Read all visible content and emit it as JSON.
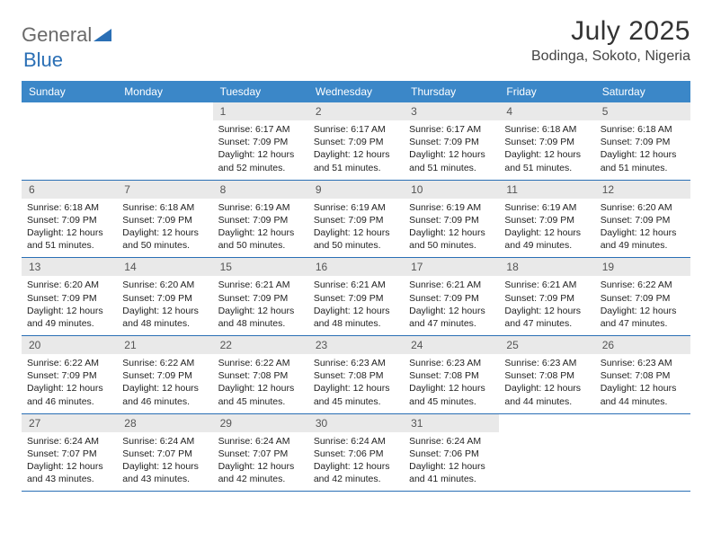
{
  "logo": {
    "text1": "General",
    "text2": "Blue"
  },
  "title": "July 2025",
  "location": "Bodinga, Sokoto, Nigeria",
  "colors": {
    "headerBar": "#3b87c8",
    "weekDivider": "#2a6fb5",
    "dayNumBg": "#e9e9e9",
    "logoAccent": "#2a6fb5",
    "textDark": "#333333"
  },
  "daysOfWeek": [
    "Sunday",
    "Monday",
    "Tuesday",
    "Wednesday",
    "Thursday",
    "Friday",
    "Saturday"
  ],
  "weeks": [
    [
      {
        "n": "",
        "sunrise": "",
        "sunset": "",
        "daylight": "",
        "empty": true
      },
      {
        "n": "",
        "sunrise": "",
        "sunset": "",
        "daylight": "",
        "empty": true
      },
      {
        "n": "1",
        "sunrise": "Sunrise: 6:17 AM",
        "sunset": "Sunset: 7:09 PM",
        "daylight": "Daylight: 12 hours and 52 minutes."
      },
      {
        "n": "2",
        "sunrise": "Sunrise: 6:17 AM",
        "sunset": "Sunset: 7:09 PM",
        "daylight": "Daylight: 12 hours and 51 minutes."
      },
      {
        "n": "3",
        "sunrise": "Sunrise: 6:17 AM",
        "sunset": "Sunset: 7:09 PM",
        "daylight": "Daylight: 12 hours and 51 minutes."
      },
      {
        "n": "4",
        "sunrise": "Sunrise: 6:18 AM",
        "sunset": "Sunset: 7:09 PM",
        "daylight": "Daylight: 12 hours and 51 minutes."
      },
      {
        "n": "5",
        "sunrise": "Sunrise: 6:18 AM",
        "sunset": "Sunset: 7:09 PM",
        "daylight": "Daylight: 12 hours and 51 minutes."
      }
    ],
    [
      {
        "n": "6",
        "sunrise": "Sunrise: 6:18 AM",
        "sunset": "Sunset: 7:09 PM",
        "daylight": "Daylight: 12 hours and 51 minutes."
      },
      {
        "n": "7",
        "sunrise": "Sunrise: 6:18 AM",
        "sunset": "Sunset: 7:09 PM",
        "daylight": "Daylight: 12 hours and 50 minutes."
      },
      {
        "n": "8",
        "sunrise": "Sunrise: 6:19 AM",
        "sunset": "Sunset: 7:09 PM",
        "daylight": "Daylight: 12 hours and 50 minutes."
      },
      {
        "n": "9",
        "sunrise": "Sunrise: 6:19 AM",
        "sunset": "Sunset: 7:09 PM",
        "daylight": "Daylight: 12 hours and 50 minutes."
      },
      {
        "n": "10",
        "sunrise": "Sunrise: 6:19 AM",
        "sunset": "Sunset: 7:09 PM",
        "daylight": "Daylight: 12 hours and 50 minutes."
      },
      {
        "n": "11",
        "sunrise": "Sunrise: 6:19 AM",
        "sunset": "Sunset: 7:09 PM",
        "daylight": "Daylight: 12 hours and 49 minutes."
      },
      {
        "n": "12",
        "sunrise": "Sunrise: 6:20 AM",
        "sunset": "Sunset: 7:09 PM",
        "daylight": "Daylight: 12 hours and 49 minutes."
      }
    ],
    [
      {
        "n": "13",
        "sunrise": "Sunrise: 6:20 AM",
        "sunset": "Sunset: 7:09 PM",
        "daylight": "Daylight: 12 hours and 49 minutes."
      },
      {
        "n": "14",
        "sunrise": "Sunrise: 6:20 AM",
        "sunset": "Sunset: 7:09 PM",
        "daylight": "Daylight: 12 hours and 48 minutes."
      },
      {
        "n": "15",
        "sunrise": "Sunrise: 6:21 AM",
        "sunset": "Sunset: 7:09 PM",
        "daylight": "Daylight: 12 hours and 48 minutes."
      },
      {
        "n": "16",
        "sunrise": "Sunrise: 6:21 AM",
        "sunset": "Sunset: 7:09 PM",
        "daylight": "Daylight: 12 hours and 48 minutes."
      },
      {
        "n": "17",
        "sunrise": "Sunrise: 6:21 AM",
        "sunset": "Sunset: 7:09 PM",
        "daylight": "Daylight: 12 hours and 47 minutes."
      },
      {
        "n": "18",
        "sunrise": "Sunrise: 6:21 AM",
        "sunset": "Sunset: 7:09 PM",
        "daylight": "Daylight: 12 hours and 47 minutes."
      },
      {
        "n": "19",
        "sunrise": "Sunrise: 6:22 AM",
        "sunset": "Sunset: 7:09 PM",
        "daylight": "Daylight: 12 hours and 47 minutes."
      }
    ],
    [
      {
        "n": "20",
        "sunrise": "Sunrise: 6:22 AM",
        "sunset": "Sunset: 7:09 PM",
        "daylight": "Daylight: 12 hours and 46 minutes."
      },
      {
        "n": "21",
        "sunrise": "Sunrise: 6:22 AM",
        "sunset": "Sunset: 7:09 PM",
        "daylight": "Daylight: 12 hours and 46 minutes."
      },
      {
        "n": "22",
        "sunrise": "Sunrise: 6:22 AM",
        "sunset": "Sunset: 7:08 PM",
        "daylight": "Daylight: 12 hours and 45 minutes."
      },
      {
        "n": "23",
        "sunrise": "Sunrise: 6:23 AM",
        "sunset": "Sunset: 7:08 PM",
        "daylight": "Daylight: 12 hours and 45 minutes."
      },
      {
        "n": "24",
        "sunrise": "Sunrise: 6:23 AM",
        "sunset": "Sunset: 7:08 PM",
        "daylight": "Daylight: 12 hours and 45 minutes."
      },
      {
        "n": "25",
        "sunrise": "Sunrise: 6:23 AM",
        "sunset": "Sunset: 7:08 PM",
        "daylight": "Daylight: 12 hours and 44 minutes."
      },
      {
        "n": "26",
        "sunrise": "Sunrise: 6:23 AM",
        "sunset": "Sunset: 7:08 PM",
        "daylight": "Daylight: 12 hours and 44 minutes."
      }
    ],
    [
      {
        "n": "27",
        "sunrise": "Sunrise: 6:24 AM",
        "sunset": "Sunset: 7:07 PM",
        "daylight": "Daylight: 12 hours and 43 minutes."
      },
      {
        "n": "28",
        "sunrise": "Sunrise: 6:24 AM",
        "sunset": "Sunset: 7:07 PM",
        "daylight": "Daylight: 12 hours and 43 minutes."
      },
      {
        "n": "29",
        "sunrise": "Sunrise: 6:24 AM",
        "sunset": "Sunset: 7:07 PM",
        "daylight": "Daylight: 12 hours and 42 minutes."
      },
      {
        "n": "30",
        "sunrise": "Sunrise: 6:24 AM",
        "sunset": "Sunset: 7:06 PM",
        "daylight": "Daylight: 12 hours and 42 minutes."
      },
      {
        "n": "31",
        "sunrise": "Sunrise: 6:24 AM",
        "sunset": "Sunset: 7:06 PM",
        "daylight": "Daylight: 12 hours and 41 minutes."
      },
      {
        "n": "",
        "sunrise": "",
        "sunset": "",
        "daylight": "",
        "empty": true
      },
      {
        "n": "",
        "sunrise": "",
        "sunset": "",
        "daylight": "",
        "empty": true
      }
    ]
  ]
}
